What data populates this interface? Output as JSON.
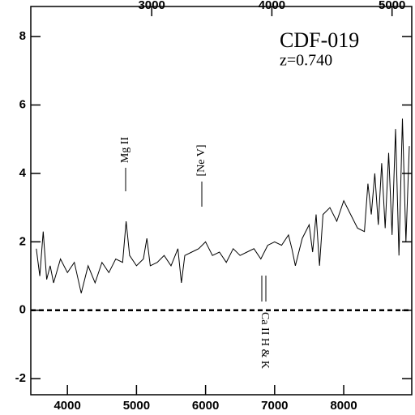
{
  "chart_data": {
    "type": "line",
    "annotations": [
      "CDF-019",
      "z=0.740",
      "Mg II",
      "[Ne V]",
      "Ca II H & K"
    ],
    "x": [
      3550,
      3600,
      3650,
      3700,
      3750,
      3800,
      3900,
      4000,
      4100,
      4200,
      4300,
      4400,
      4500,
      4600,
      4700,
      4800,
      4850,
      4900,
      5000,
      5100,
      5150,
      5200,
      5300,
      5400,
      5500,
      5600,
      5650,
      5700,
      5800,
      5900,
      6000,
      6100,
      6200,
      6300,
      6400,
      6500,
      6600,
      6700,
      6800,
      6900,
      7000,
      7100,
      7200,
      7250,
      7300,
      7400,
      7500,
      7550,
      7600,
      7650,
      7700,
      7800,
      7900,
      8000,
      8100,
      8200,
      8300,
      8350,
      8400,
      8450,
      8500,
      8550,
      8600,
      8650,
      8700,
      8750,
      8800,
      8850,
      8900,
      8950
    ],
    "values": [
      1.8,
      1.0,
      2.3,
      0.9,
      1.3,
      0.8,
      1.5,
      1.1,
      1.4,
      0.5,
      1.3,
      0.8,
      1.4,
      1.1,
      1.5,
      1.4,
      2.6,
      1.6,
      1.3,
      1.5,
      2.1,
      1.3,
      1.4,
      1.6,
      1.3,
      1.8,
      0.8,
      1.6,
      1.7,
      1.8,
      2.0,
      1.6,
      1.7,
      1.4,
      1.8,
      1.6,
      1.7,
      1.8,
      1.5,
      1.9,
      2.0,
      1.9,
      2.2,
      1.8,
      1.3,
      2.1,
      2.5,
      1.7,
      2.8,
      1.3,
      2.8,
      3.0,
      2.6,
      3.2,
      2.8,
      2.4,
      2.3,
      3.7,
      2.8,
      4.0,
      2.5,
      4.3,
      2.4,
      4.6,
      2.2,
      5.3,
      1.6,
      5.6,
      2.0,
      4.8
    ],
    "color": "#000000",
    "xlim": [
      3470,
      8985
    ],
    "xticks": [
      4000,
      5000,
      6000,
      7000,
      8000
    ],
    "x2lim": [
      1994,
      5164
    ],
    "x2ticks": [
      3000,
      4000,
      5000
    ],
    "ylim": [
      -2.47,
      8.88
    ],
    "yticks": [
      -2,
      0,
      2,
      4,
      6,
      8
    ]
  }
}
